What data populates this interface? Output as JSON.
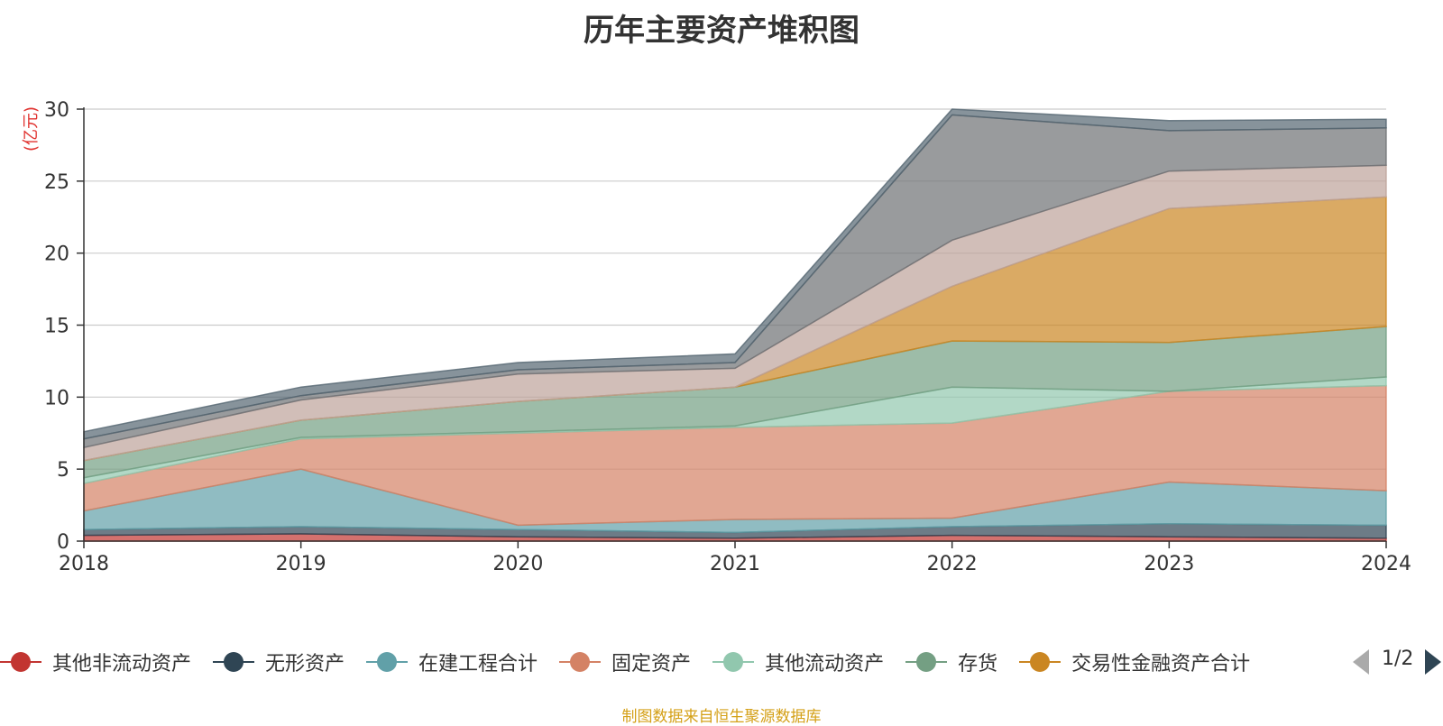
{
  "chart_data": {
    "type": "area",
    "stacked": true,
    "title": "历年主要资产堆积图",
    "ylabel": "(亿元)",
    "xlabel": "",
    "x": [
      "2018",
      "2019",
      "2020",
      "2021",
      "2022",
      "2023",
      "2024"
    ],
    "ylim": [
      0,
      30
    ],
    "yticks": [
      0,
      5,
      10,
      15,
      20,
      25,
      30
    ],
    "grid": true,
    "legend_position": "bottom",
    "legend_page": "1/2",
    "series": [
      {
        "name": "其他非流动资产",
        "color": "#c23531",
        "values": [
          0.4,
          0.5,
          0.3,
          0.2,
          0.4,
          0.3,
          0.2
        ]
      },
      {
        "name": "无形资产",
        "color": "#2f4554",
        "values": [
          0.4,
          0.5,
          0.5,
          0.4,
          0.6,
          0.9,
          0.9
        ]
      },
      {
        "name": "在建工程合计",
        "color": "#61a0a8",
        "values": [
          1.3,
          4.0,
          0.3,
          0.9,
          0.6,
          2.9,
          2.4
        ]
      },
      {
        "name": "固定资产",
        "color": "#d48265",
        "values": [
          1.9,
          2.1,
          6.4,
          6.4,
          6.6,
          6.3,
          7.3
        ]
      },
      {
        "name": "其他流动资产",
        "color": "#91c7ae",
        "values": [
          0.4,
          0.1,
          0.1,
          0.1,
          2.5,
          0.0,
          0.6
        ]
      },
      {
        "name": "存货",
        "color": "#749f83",
        "values": [
          1.2,
          1.2,
          2.1,
          2.7,
          3.2,
          3.4,
          3.5
        ]
      },
      {
        "name": "交易性金融资产合计",
        "color": "#ca8622",
        "values": [
          0.0,
          0.0,
          0.0,
          0.0,
          3.8,
          9.3,
          9.0
        ]
      },
      {
        "name": "",
        "color": "#bda29a",
        "values": [
          0.9,
          1.4,
          1.9,
          1.3,
          3.2,
          2.6,
          2.2
        ]
      },
      {
        "name": "",
        "color": "#6e7074",
        "values": [
          0.6,
          0.3,
          0.3,
          0.4,
          8.7,
          2.8,
          2.6
        ]
      },
      {
        "name": "",
        "color": "#546570",
        "values": [
          0.5,
          0.6,
          0.5,
          0.6,
          0.4,
          0.7,
          0.6
        ]
      }
    ]
  },
  "legend": {
    "page": "1/2"
  },
  "source_note": "制图数据来自恒生聚源数据库"
}
